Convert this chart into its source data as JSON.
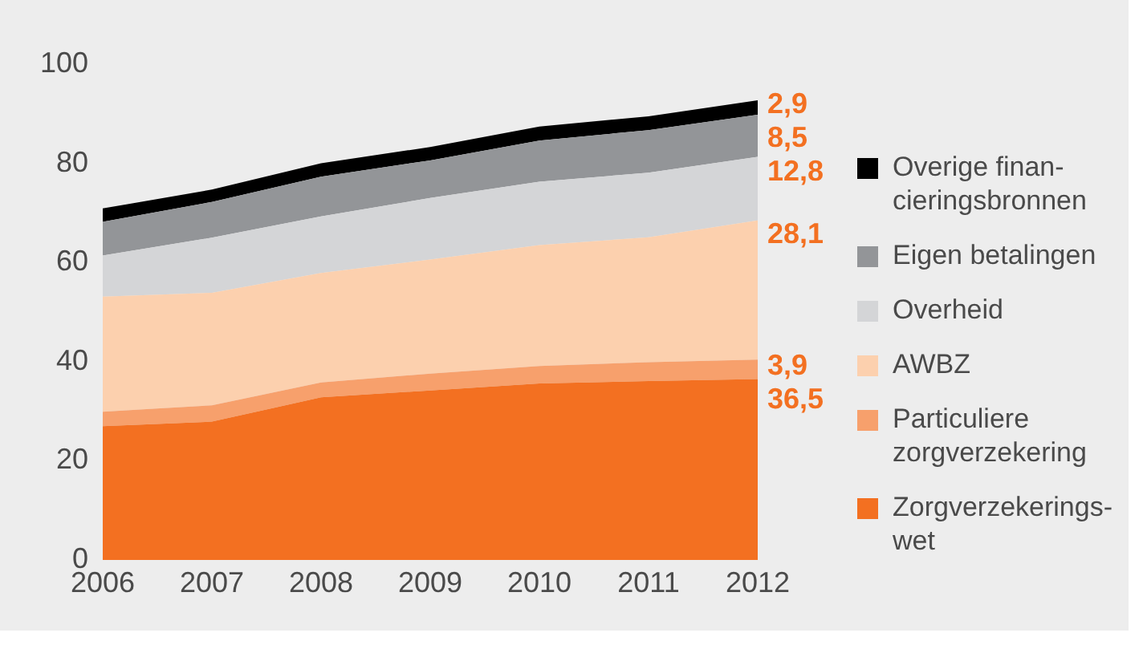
{
  "chart_data": {
    "type": "area",
    "stacked": true,
    "categories": [
      "2006",
      "2007",
      "2008",
      "2009",
      "2010",
      "2011",
      "2012"
    ],
    "ylim": [
      0,
      100
    ],
    "yticks": [
      0,
      20,
      40,
      60,
      80,
      100
    ],
    "grid": false,
    "legend": "right",
    "marker": "none",
    "series": [
      {
        "name": "Zorgverzekerings-wet",
        "color": "#f37021",
        "values": [
          27.0,
          27.9,
          32.8,
          34.2,
          35.6,
          36.1,
          36.5
        ],
        "value_labels": [
          null,
          null,
          null,
          null,
          null,
          null,
          "36,5"
        ]
      },
      {
        "name": "Particuliere zorgverzekering",
        "color": "#f7a06c",
        "values": [
          2.9,
          3.3,
          3.0,
          3.4,
          3.5,
          3.8,
          3.9
        ],
        "value_labels": [
          null,
          null,
          null,
          null,
          null,
          null,
          "3,9"
        ]
      },
      {
        "name": "AWBZ",
        "color": "#fcd0ae",
        "values": [
          23.2,
          22.7,
          22.1,
          23.0,
          24.4,
          25.2,
          28.1
        ],
        "value_labels": [
          null,
          null,
          null,
          null,
          null,
          null,
          "28,1"
        ]
      },
      {
        "name": "Overheid",
        "color": "#d4d5d7",
        "values": [
          8.3,
          11.1,
          11.4,
          12.4,
          12.8,
          13.0,
          12.8
        ],
        "value_labels": [
          null,
          null,
          null,
          null,
          null,
          null,
          "12,8"
        ]
      },
      {
        "name": "Eigen betalingen",
        "color": "#939598",
        "values": [
          6.8,
          7.2,
          8.0,
          7.6,
          8.3,
          8.6,
          8.5
        ],
        "value_labels": [
          null,
          null,
          null,
          null,
          null,
          null,
          "8,5"
        ]
      },
      {
        "name": "Overige finan-cieringsbronnen",
        "color": "#000000",
        "values": [
          2.7,
          2.5,
          2.7,
          2.7,
          2.8,
          2.8,
          2.9
        ],
        "value_labels": [
          null,
          null,
          null,
          null,
          null,
          null,
          "2,9"
        ]
      }
    ]
  }
}
